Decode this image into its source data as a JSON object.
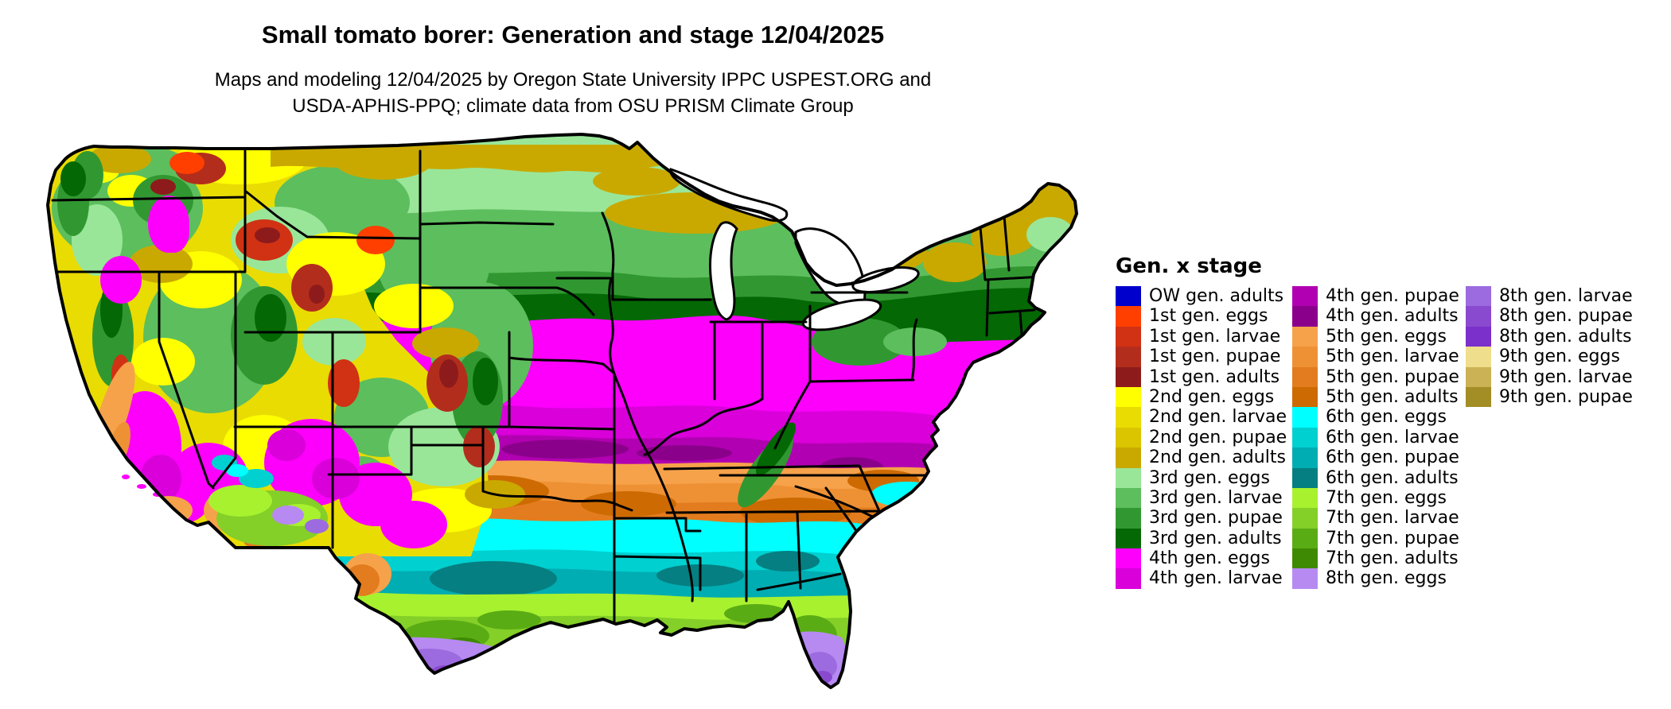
{
  "header": {
    "title": "Small tomato borer: Generation and stage 12/04/2025",
    "subtitle1": "Maps and modeling 12/04/2025 by Oregon State University IPPC USPEST.ORG and",
    "subtitle2": "USDA-APHIS-PPQ; climate data from OSU PRISM Climate Group"
  },
  "legend": {
    "title": "Gen. x stage",
    "columns": [
      15,
      15,
      6
    ],
    "items": [
      {
        "key": "ow-adults",
        "label": "OW gen. adults",
        "color": "#0000CC"
      },
      {
        "key": "g1-eggs",
        "label": "1st gen. eggs",
        "color": "#FF3F00"
      },
      {
        "key": "g1-larvae",
        "label": "1st gen. larvae",
        "color": "#D03213"
      },
      {
        "key": "g1-pupae",
        "label": "1st gen. pupae",
        "color": "#B32D1C"
      },
      {
        "key": "g1-adults",
        "label": "1st gen. adults",
        "color": "#8E1B1B"
      },
      {
        "key": "g2-eggs",
        "label": "2nd gen. eggs",
        "color": "#FFFF00"
      },
      {
        "key": "g2-larvae",
        "label": "2nd gen. larvae",
        "color": "#E9DC03"
      },
      {
        "key": "g2-pupae",
        "label": "2nd gen. pupae",
        "color": "#DAC500"
      },
      {
        "key": "g2-adults",
        "label": "2nd gen. adults",
        "color": "#C9A900"
      },
      {
        "key": "g3-eggs",
        "label": "3rd gen. eggs",
        "color": "#99E699"
      },
      {
        "key": "g3-larvae",
        "label": "3rd gen. larvae",
        "color": "#5DBE5D"
      },
      {
        "key": "g3-pupae",
        "label": "3rd gen. pupae",
        "color": "#319831"
      },
      {
        "key": "g3-adults",
        "label": "3rd gen. adults",
        "color": "#046804"
      },
      {
        "key": "g4-eggs",
        "label": "4th gen. eggs",
        "color": "#FC00FC"
      },
      {
        "key": "g4-larvae",
        "label": "4th gen. larvae",
        "color": "#DA00DA"
      },
      {
        "key": "g4-pupae",
        "label": "4th gen. pupae",
        "color": "#B100B1"
      },
      {
        "key": "g4-adults",
        "label": "4th gen. adults",
        "color": "#8B008B"
      },
      {
        "key": "g5-eggs",
        "label": "5th gen. eggs",
        "color": "#F6A24A"
      },
      {
        "key": "g5-larvae",
        "label": "5th gen. larvae",
        "color": "#EE9134"
      },
      {
        "key": "g5-pupae",
        "label": "5th gen. pupae",
        "color": "#E27C1E"
      },
      {
        "key": "g5-adults",
        "label": "5th gen. adults",
        "color": "#CD6A02"
      },
      {
        "key": "g6-eggs",
        "label": "6th gen. eggs",
        "color": "#00FFFF"
      },
      {
        "key": "g6-larvae",
        "label": "6th gen. larvae",
        "color": "#00D0D0"
      },
      {
        "key": "g6-pupae",
        "label": "6th gen. pupae",
        "color": "#00ADB2"
      },
      {
        "key": "g6-adults",
        "label": "6th gen. adults",
        "color": "#057F81"
      },
      {
        "key": "g7-eggs",
        "label": "7th gen. eggs",
        "color": "#A8F12F"
      },
      {
        "key": "g7-larvae",
        "label": "7th gen. larvae",
        "color": "#84CF28"
      },
      {
        "key": "g7-pupae",
        "label": "7th gen. pupae",
        "color": "#5AAC14"
      },
      {
        "key": "g7-adults",
        "label": "7th gen. adults",
        "color": "#3F8A03"
      },
      {
        "key": "g8-eggs",
        "label": "8th gen. eggs",
        "color": "#B78AF2"
      },
      {
        "key": "g8-larvae",
        "label": "8th gen. larvae",
        "color": "#9C6BDF"
      },
      {
        "key": "g8-pupae",
        "label": "8th gen. pupae",
        "color": "#8A4ACF"
      },
      {
        "key": "g8-adults",
        "label": "8th gen. adults",
        "color": "#7B2FCB"
      },
      {
        "key": "g9-eggs",
        "label": "9th gen. eggs",
        "color": "#EFDE8C"
      },
      {
        "key": "g9-larvae",
        "label": "9th gen. larvae",
        "color": "#CBB254"
      },
      {
        "key": "g9-pupae",
        "label": "9th gen. pupae",
        "color": "#A38D25"
      }
    ]
  }
}
